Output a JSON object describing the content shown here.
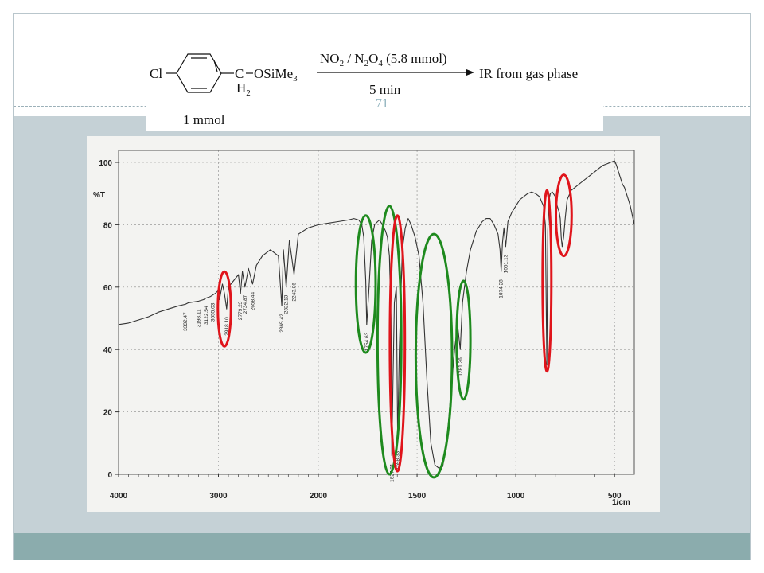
{
  "slide": {
    "page_number": "71",
    "colors": {
      "body_band": "#c5d1d6",
      "footer_band": "#8bacad",
      "slide_number": "#8fb2bd",
      "red_circle": "#e0141b",
      "green_circle": "#1e8a1e"
    }
  },
  "scheme": {
    "reactant_prefix": "Cl",
    "reactant_carbon": "C",
    "reactant_group": "OSiMe",
    "reactant_group_sub": "3",
    "ch2_label": "H",
    "ch2_sub": "2",
    "reactant_amount": "1 mmol",
    "reagent": {
      "p1": "NO",
      "s1": "2",
      "p2": " / N",
      "s2": "2",
      "p3": "O",
      "s3": "4",
      "p4": " (5.8 mmol)"
    },
    "condition": "5 min",
    "product": "IR from gas phase"
  },
  "chart_data": {
    "type": "line",
    "title": "",
    "xlabel": "1/cm",
    "ylabel": "%T",
    "xlim": [
      4000,
      400
    ],
    "ylim": [
      0,
      100
    ],
    "x_ticks": [
      4000,
      3000,
      2000,
      1500,
      1000,
      500
    ],
    "y_ticks": [
      0,
      20,
      40,
      60,
      80,
      100
    ],
    "grid": true,
    "series": [
      {
        "x": [
          4000,
          3900,
          3800,
          3700,
          3600,
          3500,
          3400,
          3332.47,
          3300,
          3198.11,
          3150,
          3122.54,
          3080,
          3055.03,
          3030,
          3000,
          2990,
          2960,
          2940,
          2918.1,
          2900,
          2850,
          2800,
          2779.23,
          2760,
          2734.87,
          2700,
          2658.44,
          2620,
          2600,
          2560,
          2520,
          2480,
          2440,
          2400,
          2365.42,
          2350,
          2322.13,
          2290,
          2243.06,
          2200,
          2150,
          2100,
          2050,
          2000,
          1950,
          1900,
          1850,
          1820,
          1795,
          1780,
          1770,
          1760,
          1755,
          1745,
          1730,
          1715,
          1700,
          1690,
          1675,
          1660,
          1650,
          1640,
          1632,
          1627.81,
          1622,
          1615,
          1605,
          1598.33,
          1590,
          1575,
          1560,
          1545,
          1530,
          1510,
          1490,
          1470,
          1450,
          1430,
          1410,
          1390,
          1370,
          1350,
          1330,
          1310,
          1295,
          1281.36,
          1270,
          1250,
          1230,
          1200,
          1170,
          1150,
          1130,
          1110,
          1090,
          1080,
          1074.28,
          1068,
          1060,
          1051.13,
          1040,
          1020,
          1000,
          980,
          960,
          940,
          920,
          900,
          880,
          860,
          850,
          843,
          838,
          832,
          825,
          815,
          800,
          790,
          780,
          775,
          770,
          765,
          758,
          750,
          740,
          720,
          700,
          680,
          660,
          640,
          620,
          600,
          580,
          560,
          540,
          520,
          500,
          490,
          480,
          470,
          460,
          450,
          440,
          430,
          420,
          410,
          400
        ],
        "y": [
          48,
          48.5,
          49.5,
          50.5,
          52,
          53,
          54,
          54.5,
          55,
          55.5,
          56,
          56.5,
          57,
          57.5,
          58,
          59,
          56,
          61,
          58,
          53,
          60,
          62,
          64,
          58,
          65,
          60,
          66,
          61,
          67,
          68,
          70,
          71,
          72,
          71,
          70,
          54,
          72,
          60,
          75,
          64,
          77,
          78,
          79,
          79.5,
          80,
          80.5,
          81,
          81.5,
          82,
          81.5,
          80,
          76,
          62,
          48,
          58,
          75,
          80,
          81,
          81.5,
          80,
          78,
          76,
          70,
          50,
          6,
          30,
          55,
          60,
          10,
          40,
          72,
          79,
          82,
          80,
          76,
          70,
          55,
          30,
          10,
          3,
          2,
          2.5,
          10,
          25,
          40,
          48,
          40,
          55,
          65,
          72,
          78,
          81,
          82,
          82,
          80,
          77,
          72,
          65,
          74,
          79,
          73,
          81,
          84,
          86,
          88,
          89,
          90,
          90.5,
          90,
          89,
          86,
          80,
          35,
          78,
          88,
          90,
          90.5,
          89,
          86,
          84,
          82,
          76,
          73,
          76,
          82,
          88,
          91,
          92,
          93,
          94,
          95,
          96,
          97,
          98,
          99,
          99.5,
          100,
          100.5,
          99,
          97,
          95,
          93,
          92,
          90,
          88,
          86,
          83,
          80
        ]
      }
    ],
    "annotations": [
      {
        "x": 3332.47,
        "label": "3332.47"
      },
      {
        "x": 3198.11,
        "label": "3198.11"
      },
      {
        "x": 3122.54,
        "label": "3122.54"
      },
      {
        "x": 3055.03,
        "label": "3055.03"
      },
      {
        "x": 2918.1,
        "label": "2918.10"
      },
      {
        "x": 2779.23,
        "label": "2779.23"
      },
      {
        "x": 2734.87,
        "label": "2734.87"
      },
      {
        "x": 2658.44,
        "label": "2658.44"
      },
      {
        "x": 2365.42,
        "label": "2365.42"
      },
      {
        "x": 2322.13,
        "label": "2322.13"
      },
      {
        "x": 2243.06,
        "label": "2243.06"
      },
      {
        "x": 1755,
        "label": "1754.63"
      },
      {
        "x": 1627.81,
        "label": "1627.81"
      },
      {
        "x": 1598.33,
        "label": "1598.33"
      },
      {
        "x": 1281.36,
        "label": "1281.36"
      },
      {
        "x": 1074.28,
        "label": "1074.28"
      },
      {
        "x": 1051.13,
        "label": "1051.13"
      }
    ],
    "highlights": [
      {
        "color": "red",
        "x_center": 2940,
        "y_center": 53,
        "x_radius": 65,
        "y_radius": 12
      },
      {
        "color": "green",
        "x_center": 1760,
        "y_center": 61,
        "x_radius": 50,
        "y_radius": 22
      },
      {
        "color": "green",
        "x_center": 1640,
        "y_center": 43,
        "x_radius": 60,
        "y_radius": 43
      },
      {
        "color": "red",
        "x_center": 1600,
        "y_center": 42,
        "x_radius": 38,
        "y_radius": 41
      },
      {
        "color": "green",
        "x_center": 1415,
        "y_center": 38,
        "x_radius": 92,
        "y_radius": 39
      },
      {
        "color": "green",
        "x_center": 1265,
        "y_center": 43,
        "x_radius": 35,
        "y_radius": 19
      },
      {
        "color": "red",
        "x_center": 842,
        "y_center": 62,
        "x_radius": 22,
        "y_radius": 29
      },
      {
        "color": "red",
        "x_center": 757,
        "y_center": 83,
        "x_radius": 40,
        "y_radius": 13
      }
    ]
  }
}
